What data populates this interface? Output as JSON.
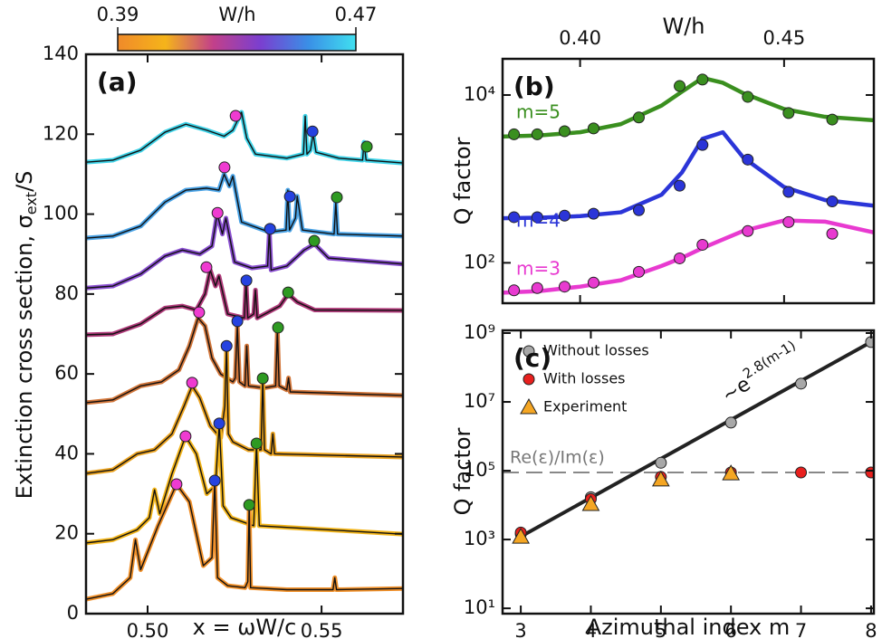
{
  "chart_data": [
    {
      "type": "line",
      "title": "(a)",
      "x_label": "x = ωW/c",
      "y_label": {
        "text": "Extinction cross section, σ",
        "subscript": "ext",
        "suffix": "/S"
      },
      "xlim": [
        0.4823,
        0.5734
      ],
      "xticks": [
        {
          "value": 0.5,
          "label": "0.50"
        },
        {
          "value": 0.55,
          "label": "0.55"
        }
      ],
      "ylim": [
        0,
        140
      ],
      "yticks": [
        0,
        20,
        40,
        60,
        80,
        100,
        120,
        140
      ],
      "colorbar": {
        "label": "W/h",
        "lim": [
          0.39,
          0.47
        ],
        "ticks": [
          0.39,
          0.47
        ],
        "colors": [
          "#f08a2a",
          "#f5b41a",
          "#c2408a",
          "#7a3fd0",
          "#3a8fe6",
          "#40e0f0"
        ]
      },
      "series": [
        {
          "color": "#3fd3e8",
          "x": [
            0.4823,
            0.49,
            0.498,
            0.505,
            0.511,
            0.517,
            0.522,
            0.5245,
            0.527,
            0.5285,
            0.531,
            0.54,
            0.5448,
            0.5453,
            0.5458,
            0.5468,
            0.5476,
            0.5484,
            0.555,
            0.5618,
            0.5622,
            0.5628,
            0.5734
          ],
          "values": [
            113,
            113.5,
            116,
            120.5,
            122.5,
            121,
            119.5,
            121,
            125.5,
            119,
            115,
            114,
            115,
            124.5,
            115,
            116,
            120,
            115.5,
            114,
            113.5,
            118,
            113.5,
            112.8
          ]
        },
        {
          "color": "#4aa3e6",
          "x": [
            0.4823,
            0.49,
            0.498,
            0.505,
            0.511,
            0.517,
            0.5205,
            0.522,
            0.5235,
            0.5245,
            0.527,
            0.535,
            0.5398,
            0.5403,
            0.5408,
            0.5425,
            0.543,
            0.5445,
            0.5536,
            0.5541,
            0.5546,
            0.5734
          ],
          "values": [
            94,
            94.5,
            97,
            103,
            106,
            106.5,
            106,
            110,
            107,
            109.5,
            98,
            95.5,
            96,
            106,
            96,
            99,
            104.5,
            96,
            95,
            103,
            95,
            94.5
          ]
        },
        {
          "color": "#8a4fd0",
          "x": [
            0.4823,
            0.49,
            0.498,
            0.505,
            0.51,
            0.515,
            0.5185,
            0.52,
            0.5215,
            0.5225,
            0.525,
            0.53,
            0.5345,
            0.535,
            0.5355,
            0.54,
            0.545,
            0.548,
            0.552,
            0.5734
          ],
          "values": [
            81.5,
            82,
            85,
            89.5,
            91,
            90,
            92,
            100,
            95,
            99,
            88,
            86.5,
            87,
            96,
            86,
            87,
            91,
            92.5,
            89,
            87.5
          ]
        },
        {
          "color": "#b03a7a",
          "x": [
            0.4823,
            0.49,
            0.498,
            0.505,
            0.51,
            0.514,
            0.5165,
            0.518,
            0.5195,
            0.5205,
            0.523,
            0.5278,
            0.5283,
            0.5288,
            0.5305,
            0.531,
            0.5315,
            0.538,
            0.5404,
            0.543,
            0.548,
            0.5734
          ],
          "values": [
            69.8,
            70,
            72.5,
            76.5,
            77,
            76,
            80,
            86,
            82,
            84.5,
            75,
            74,
            83,
            74,
            75,
            81,
            74,
            77,
            80,
            78,
            76,
            75.9
          ]
        },
        {
          "color": "#d2763a",
          "x": [
            0.4823,
            0.49,
            0.498,
            0.504,
            0.509,
            0.512,
            0.5145,
            0.5165,
            0.5185,
            0.521,
            0.5245,
            0.5252,
            0.5258,
            0.5264,
            0.528,
            0.5285,
            0.529,
            0.5335,
            0.5368,
            0.5373,
            0.5378,
            0.54,
            0.5405,
            0.541,
            0.5734
          ],
          "values": [
            52.8,
            53.5,
            57,
            58,
            61,
            67,
            74,
            72,
            64,
            60,
            58,
            59,
            72,
            58,
            57,
            67,
            57,
            56.5,
            57,
            71,
            57,
            56,
            59,
            55.5,
            54.6
          ]
        },
        {
          "color": "#eba320",
          "x": [
            0.4823,
            0.49,
            0.497,
            0.502,
            0.507,
            0.5105,
            0.5128,
            0.515,
            0.518,
            0.521,
            0.5222,
            0.5227,
            0.5232,
            0.5245,
            0.529,
            0.5326,
            0.5331,
            0.5336,
            0.5355,
            0.536,
            0.5365,
            0.5734
          ],
          "values": [
            35.1,
            36,
            40,
            41,
            45,
            52,
            57,
            54,
            47,
            44,
            52,
            67,
            45,
            43,
            41,
            41,
            58.9,
            41,
            40,
            45,
            40,
            39.2
          ]
        },
        {
          "color": "#f3b51a",
          "x": [
            0.4823,
            0.49,
            0.497,
            0.5005,
            0.502,
            0.5035,
            0.507,
            0.5109,
            0.514,
            0.517,
            0.5195,
            0.5206,
            0.5217,
            0.524,
            0.5305,
            0.5313,
            0.5321,
            0.5734
          ],
          "values": [
            17.7,
            18.5,
            21,
            24,
            31,
            25,
            35,
            44.4,
            40,
            30,
            32,
            47.6,
            27,
            24,
            22,
            42.6,
            22,
            19.9
          ]
        },
        {
          "color": "#f0902a",
          "x": [
            0.4823,
            0.49,
            0.495,
            0.4965,
            0.498,
            0.503,
            0.5083,
            0.512,
            0.516,
            0.5185,
            0.5193,
            0.5201,
            0.523,
            0.528,
            0.5288,
            0.5292,
            0.5296,
            0.54,
            0.5533,
            0.5538,
            0.5543,
            0.5734
          ],
          "values": [
            3.6,
            5,
            9,
            18.5,
            11,
            22,
            32.4,
            28,
            12,
            14,
            33.3,
            9,
            7,
            6.5,
            8,
            27.2,
            6.5,
            6,
            6,
            9,
            6,
            6.3
          ]
        }
      ],
      "markers": [
        {
          "color": "#ef3bd1",
          "x": [
            0.5253,
            0.5221,
            0.5201,
            0.5169,
            0.5148,
            0.5128,
            0.5109,
            0.5083
          ],
          "values": [
            124.6,
            111.7,
            100.3,
            86.7,
            75.4,
            57.8,
            44.4,
            32.4
          ]
        },
        {
          "color": "#2542e0",
          "x": [
            0.5474,
            0.5409,
            0.5352,
            0.5284,
            0.5258,
            0.5227,
            0.5206,
            0.5193
          ],
          "values": [
            120.7,
            104.4,
            96.3,
            83.4,
            73.2,
            67.0,
            47.6,
            33.3
          ]
        },
        {
          "color": "#2e9a22",
          "x": [
            0.563,
            0.5544,
            0.5479,
            0.5404,
            0.5375,
            0.5331,
            0.5313,
            0.5292
          ],
          "values": [
            116.9,
            104.2,
            93.3,
            80.4,
            71.6,
            58.9,
            42.6,
            27.2
          ]
        }
      ]
    },
    {
      "type": "line",
      "title": "(b)",
      "log_y": true,
      "x_label": "W/h",
      "x_axis_position": "top",
      "y_label": "Q factor",
      "xlim": [
        0.381,
        0.472
      ],
      "xticks": [
        {
          "value": 0.4,
          "label": "0.40"
        },
        {
          "value": 0.45,
          "label": "0.45"
        }
      ],
      "ylim": [
        33,
        27000
      ],
      "yticks": [
        {
          "value": 100,
          "label": "10²"
        },
        {
          "value": 10000,
          "label": "10⁴"
        }
      ],
      "series": [
        {
          "name": "m=5",
          "color": "#3a8f1f",
          "x": [
            0.3838,
            0.3895,
            0.3962,
            0.4033,
            0.4144,
            0.4244,
            0.43,
            0.4411,
            0.4511,
            0.4618
          ],
          "values": [
            3400,
            3400,
            3700,
            4000,
            5400,
            12800,
            15300,
            9500,
            6100,
            5100
          ],
          "fit": {
            "x": [
              0.381,
              0.39,
              0.4,
              0.41,
              0.42,
              0.425,
              0.43,
              0.435,
              0.44,
              0.45,
              0.46,
              0.472
            ],
            "values": [
              3200,
              3300,
              3600,
              4500,
              7500,
              11000,
              16000,
              14000,
              10500,
              6800,
              5500,
              5000
            ]
          }
        },
        {
          "name": "m=4",
          "color": "#2b35d8",
          "x": [
            0.3838,
            0.3895,
            0.3962,
            0.4033,
            0.4144,
            0.4244,
            0.43,
            0.4411,
            0.4511,
            0.4618
          ],
          "values": [
            350,
            350,
            365,
            385,
            424,
            830,
            2540,
            1700,
            700,
            540
          ],
          "fit": {
            "x": [
              0.381,
              0.39,
              0.4,
              0.41,
              0.42,
              0.425,
              0.43,
              0.435,
              0.44,
              0.45,
              0.46,
              0.472
            ],
            "values": [
              340,
              345,
              360,
              400,
              650,
              1200,
              3000,
              3600,
              1800,
              800,
              560,
              480
            ]
          }
        },
        {
          "name": "m=3",
          "color": "#e83ad0",
          "x": [
            0.3838,
            0.3895,
            0.3962,
            0.4033,
            0.4144,
            0.4244,
            0.43,
            0.4411,
            0.4511,
            0.4618
          ],
          "values": [
            47,
            50,
            52,
            58,
            78,
            113,
            164,
            239,
            306,
            222
          ],
          "fit": {
            "x": [
              0.381,
              0.39,
              0.4,
              0.41,
              0.42,
              0.425,
              0.43,
              0.435,
              0.44,
              0.45,
              0.46,
              0.472
            ],
            "values": [
              44,
              46,
              52,
              62,
              92,
              115,
              150,
              190,
              240,
              320,
              310,
              230
            ]
          }
        }
      ]
    },
    {
      "type": "scatter",
      "title": "(c)",
      "log_y": true,
      "x_label": "Azimuthal index m",
      "y_label": "Q factor",
      "legend": "upper left",
      "xlim": [
        2.74,
        8.04
      ],
      "xticks": [
        3,
        4,
        5,
        6,
        7,
        8
      ],
      "ylim": [
        7,
        1200000000
      ],
      "yticks": [
        {
          "value": 10,
          "label": "10¹"
        },
        {
          "value": 1000,
          "label": "10³"
        },
        {
          "value": 100000,
          "label": "10⁵"
        },
        {
          "value": 10000000,
          "label": "10⁷"
        },
        {
          "value": 1000000000,
          "label": "10⁹"
        }
      ],
      "fit": {
        "x": [
          2.95,
          8
        ],
        "values": [
          1070,
          550000000
        ],
        "annotation": {
          "base": "~e",
          "exponent": "2.8(m-1)"
        }
      },
      "reference": {
        "label": "Re(ε)/Im(ε)",
        "value": 89000
      },
      "series": [
        {
          "name": "Without losses",
          "color": "#a8a8a8",
          "marker": "circle",
          "x": [
            3,
            4,
            5,
            6,
            7,
            8
          ],
          "values": [
            1440,
            17000,
            170000,
            2500000,
            34000000,
            550000000
          ]
        },
        {
          "name": "With losses",
          "color": "#e8201e",
          "marker": "circle",
          "x": [
            3,
            4,
            5,
            6,
            7,
            8
          ],
          "values": [
            1600,
            15000,
            66000,
            89000,
            89000,
            89000
          ]
        },
        {
          "name": "Experiment",
          "color": "#f5a623",
          "marker": "triangle",
          "x": [
            3,
            4,
            5,
            6
          ],
          "values": [
            1200,
            10700,
            55000,
            83000
          ]
        }
      ]
    }
  ]
}
